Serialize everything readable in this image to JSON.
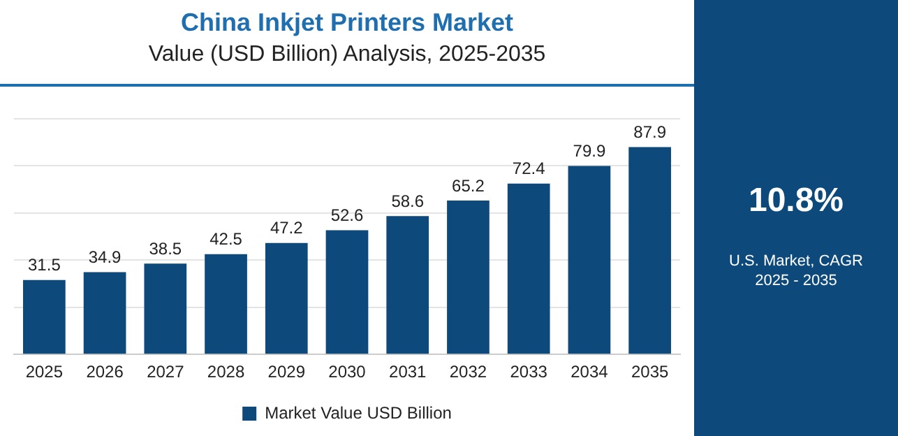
{
  "chart_data": {
    "type": "bar",
    "title": "China Inkjet Printers Market",
    "subtitle": "Value (USD Billion) Analysis, 2025-2035",
    "categories": [
      "2025",
      "2026",
      "2027",
      "2028",
      "2029",
      "2030",
      "2031",
      "2032",
      "2033",
      "2034",
      "2035"
    ],
    "series": [
      {
        "name": "Market Value USD Billion",
        "color": "#0d4a7b",
        "values": [
          31.5,
          34.9,
          38.5,
          42.5,
          47.2,
          52.6,
          58.6,
          65.2,
          72.4,
          79.9,
          87.9
        ]
      }
    ],
    "data_labels": true,
    "grid": "y",
    "legend": "bottom",
    "tick_labels": "x",
    "annotations": [
      "10.8%",
      "U.S. Market, CAGR 2025 - 2035"
    ]
  }
}
